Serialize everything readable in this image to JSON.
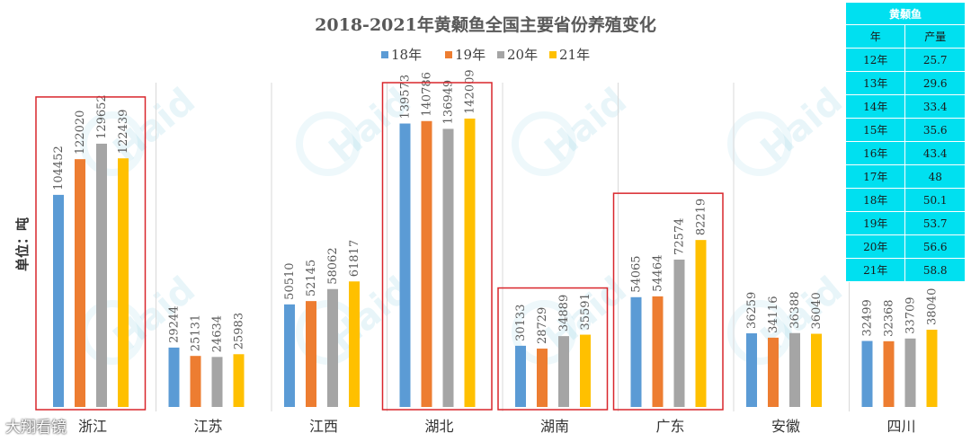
{
  "chart_data": {
    "type": "bar",
    "title": "2018-2021年黄颡鱼全国主要省份养殖变化",
    "ylabel": "单位：吨",
    "categories": [
      "浙江",
      "江苏",
      "江西",
      "湖北",
      "湖南",
      "广东",
      "安徽",
      "四川"
    ],
    "series": [
      {
        "name": "18年",
        "color": "#5b9bd5",
        "values": [
          104452,
          29244,
          50510,
          139573,
          30133,
          54065,
          36259,
          32499
        ]
      },
      {
        "name": "19年",
        "color": "#ed7d31",
        "values": [
          122020,
          25131,
          52145,
          140786,
          28729,
          54464,
          34116,
          32368
        ]
      },
      {
        "name": "20年",
        "color": "#a5a5a5",
        "values": [
          129652,
          24634,
          58062,
          136949,
          34889,
          72574,
          36388,
          33709
        ]
      },
      {
        "name": "21年",
        "color": "#ffc000",
        "values": [
          122439,
          25983,
          61817,
          142009,
          35591,
          82219,
          36040,
          38040
        ]
      }
    ],
    "ylim": [
      0,
      158000
    ],
    "highlighted_categories": [
      "浙江",
      "湖北",
      "湖南",
      "广东"
    ],
    "grid": false,
    "legend_position": "top"
  },
  "watermark": "Haid",
  "corner_label": "大翔看镜",
  "side_table": {
    "title": "黄颡鱼",
    "headers": [
      "年",
      "产量"
    ],
    "rows": [
      [
        "12年",
        "25.7"
      ],
      [
        "13年",
        "29.6"
      ],
      [
        "14年",
        "33.4"
      ],
      [
        "15年",
        "35.6"
      ],
      [
        "16年",
        "43.4"
      ],
      [
        "17年",
        "48"
      ],
      [
        "18年",
        "50.1"
      ],
      [
        "19年",
        "53.7"
      ],
      [
        "20年",
        "56.6"
      ],
      [
        "21年",
        "58.8"
      ]
    ]
  },
  "colors": {
    "highlight_box": "#d9262c",
    "table_bg": "#00e0f0"
  }
}
